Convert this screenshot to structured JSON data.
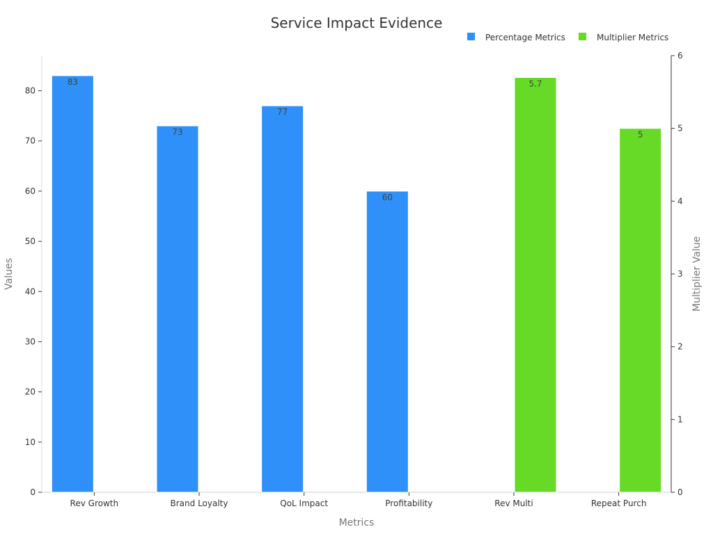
{
  "chart_data": {
    "type": "bar",
    "title": "Service Impact Evidence",
    "xlabel": "Metrics",
    "ylabel": "Values",
    "y2label": "Multiplier Value",
    "categories": [
      "Rev Growth",
      "Brand Loyalty",
      "QoL Impact",
      "Profitability",
      "Rev Multi",
      "Repeat Purch"
    ],
    "series": [
      {
        "name": "Percentage Metrics",
        "axis": "left",
        "color": "#2e90f8",
        "values": [
          83,
          73,
          77,
          60,
          null,
          null
        ],
        "labels": [
          "83",
          "73",
          "77",
          "60",
          "",
          ""
        ]
      },
      {
        "name": "Multiplier Metrics",
        "axis": "right",
        "color": "#66da26",
        "values": [
          null,
          null,
          null,
          null,
          5.7,
          5
        ],
        "labels": [
          "",
          "",
          "",
          "",
          "5.7",
          "5"
        ]
      }
    ],
    "ylim": [
      0,
      87
    ],
    "yticks": [
      0,
      10,
      20,
      30,
      40,
      50,
      60,
      70,
      80
    ],
    "y2lim": [
      0,
      6
    ],
    "y2ticks": [
      0,
      1,
      2,
      3,
      4,
      5,
      6
    ],
    "legend_position": "top-right",
    "grid": false
  }
}
